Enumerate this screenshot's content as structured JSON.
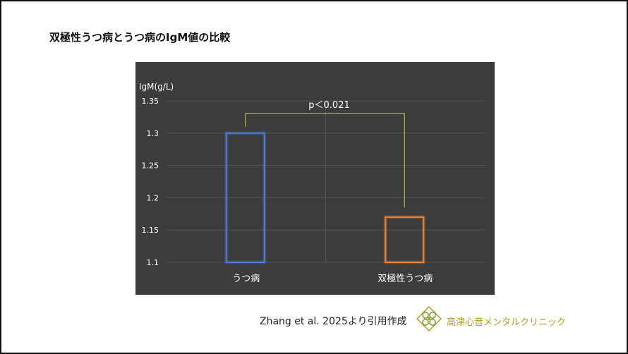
{
  "page": {
    "title": "双極性うつ病とうつ病のIgM値の比較",
    "citation": "Zhang et al. 2025より引用作成",
    "clinic_name": "高津心音メンタルクリニック"
  },
  "chart_data": {
    "type": "bar",
    "ylabel": "IgM(g/L)",
    "categories": [
      "うつ病",
      "双極性うつ病"
    ],
    "values": [
      1.3,
      1.17
    ],
    "ylim": [
      1.1,
      1.35
    ],
    "yticks": [
      "1.1",
      "1.15",
      "1.2",
      "1.25",
      "1.3",
      "1.35"
    ],
    "annotation": "p＜0.021",
    "grid": true,
    "colors": {
      "bar_1": "#4a7fd9",
      "bar_2": "#e9823a",
      "bracket": "#d6cf48",
      "background": "#3c3c3c"
    }
  }
}
